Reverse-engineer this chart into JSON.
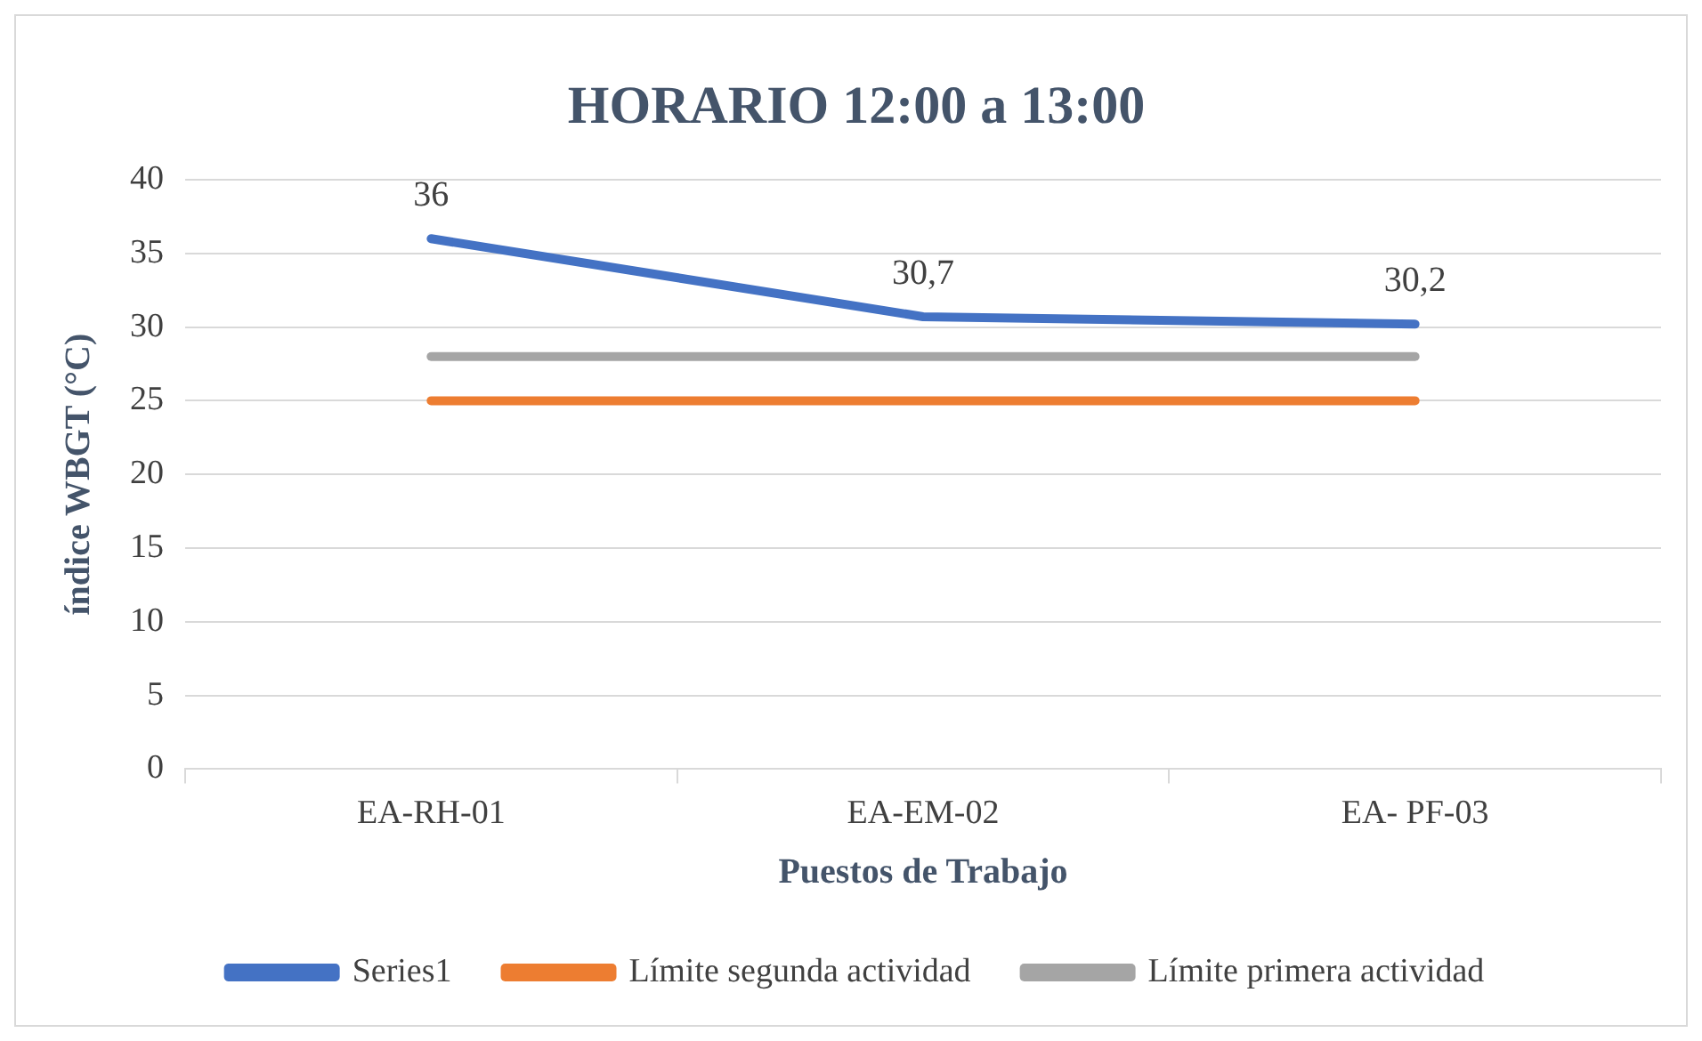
{
  "chart_data": {
    "type": "line",
    "title": "HORARIO 12:00 a 13:00",
    "xlabel": "Puestos de Trabajo",
    "ylabel": "índice WBGT (°C)",
    "categories": [
      "EA-RH-01",
      "EA-EM-02",
      "EA- PF-03"
    ],
    "series": [
      {
        "name": "Series1",
        "color": "#4472c4",
        "values": [
          36,
          30.7,
          30.2
        ],
        "value_labels": [
          "36",
          "30,7",
          "30,2"
        ]
      },
      {
        "name": "Límite segunda actividad",
        "color": "#ed7d31",
        "values": [
          25,
          25,
          25
        ]
      },
      {
        "name": "Límite primera actividad",
        "color": "#a5a5a5",
        "values": [
          28,
          28,
          28
        ]
      }
    ],
    "ylim": [
      0,
      40
    ],
    "yticks": [
      0,
      5,
      10,
      15,
      20,
      25,
      30,
      35,
      40
    ],
    "grid": "y",
    "legend": "bottom",
    "marker": "none",
    "line_style": "solid"
  }
}
